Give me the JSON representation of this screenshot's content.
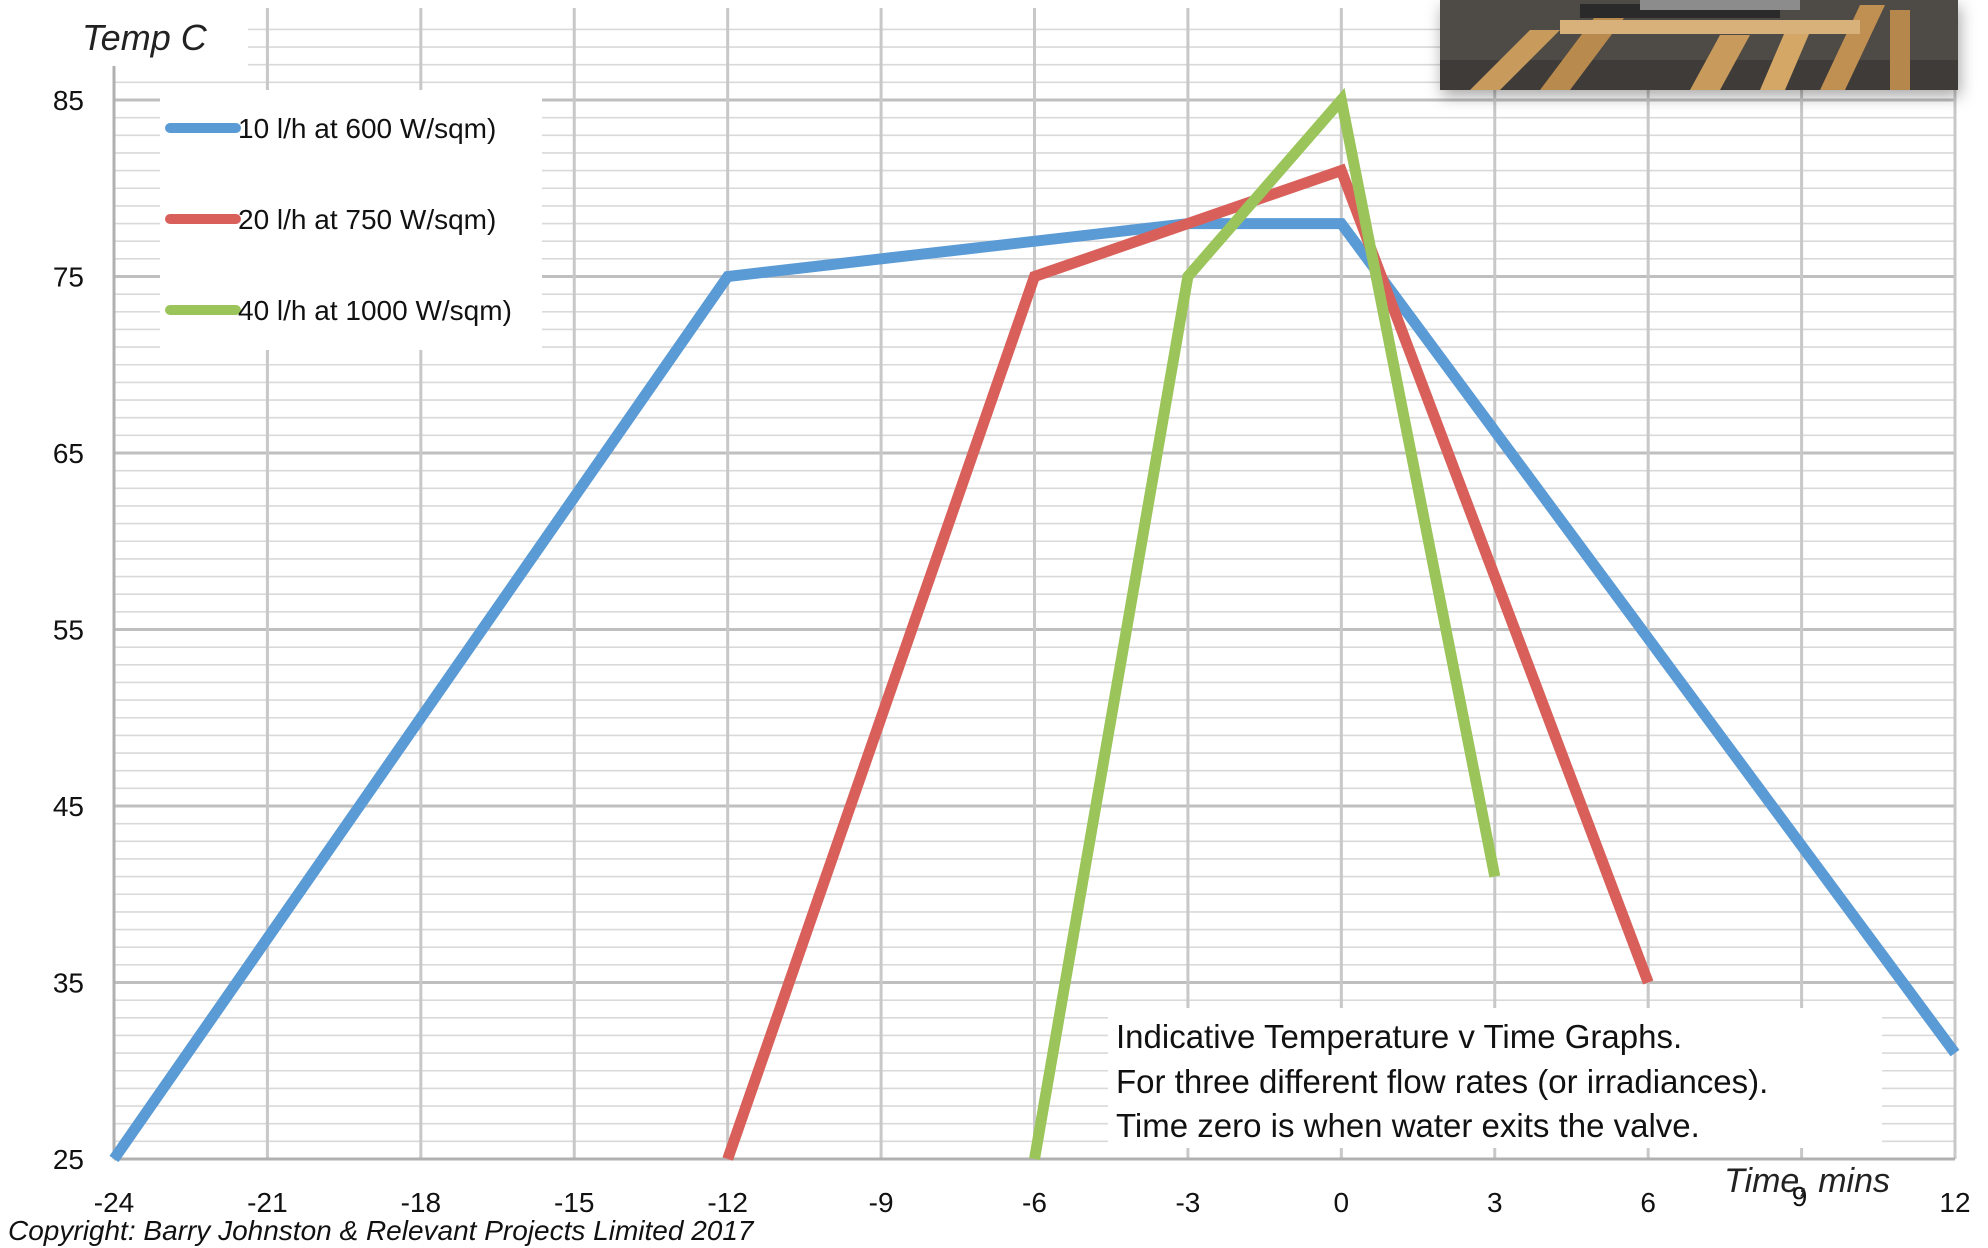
{
  "chart_data": {
    "type": "line",
    "title": "",
    "ylabel": "Temp C",
    "xlabel": "Time, mins",
    "xlim": [
      -24,
      12
    ],
    "ylim": [
      25,
      85
    ],
    "x_ticks": [
      -24,
      -21,
      -18,
      -15,
      -12,
      -9,
      -6,
      -3,
      0,
      3,
      6,
      9,
      12
    ],
    "y_ticks": [
      25,
      35,
      45,
      55,
      65,
      75,
      85
    ],
    "grid": true,
    "legend_position": "top-left",
    "series": [
      {
        "name": "10 l/h at 600 W/sqm)",
        "color": "#5b9bd5",
        "points": [
          [
            -24,
            25
          ],
          [
            -12,
            75
          ],
          [
            -3,
            78
          ],
          [
            0,
            78
          ],
          [
            12,
            31
          ]
        ]
      },
      {
        "name": "20 l/h at 750 W/sqm)",
        "color": "#d9605a",
        "points": [
          [
            -12,
            25
          ],
          [
            -6,
            75
          ],
          [
            0,
            81
          ],
          [
            6,
            35
          ]
        ]
      },
      {
        "name": "40 l/h at 1000 W/sqm)",
        "color": "#9bc55a",
        "points": [
          [
            -6,
            25
          ],
          [
            -3,
            75
          ],
          [
            0,
            85
          ],
          [
            3,
            41
          ]
        ]
      }
    ],
    "annotations": [
      "Indicative Temperature v Time Graphs.",
      "For three different flow rates (or irradiances).",
      "Time zero is when water exits the valve."
    ]
  },
  "photo_icon": "solar-collector-photo",
  "copyright": "Copyright: Barry Johnston & Relevant Projects Limited 2017"
}
